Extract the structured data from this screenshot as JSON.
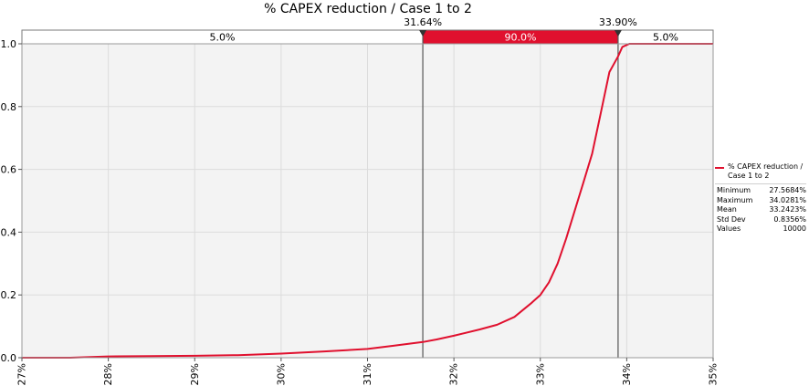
{
  "chart_data": {
    "type": "line",
    "title": "% CAPEX reduction / Case 1 to 2",
    "xlim": [
      27,
      35
    ],
    "ylim": [
      0,
      1.0
    ],
    "x_ticks": [
      "27%",
      "28%",
      "29%",
      "30%",
      "31%",
      "32%",
      "33%",
      "34%",
      "35%"
    ],
    "x_tick_values": [
      27,
      28,
      29,
      30,
      31,
      32,
      33,
      34,
      35
    ],
    "y_ticks": [
      "0.0",
      "0.2",
      "0.4",
      "0.6",
      "0.8",
      "1.0"
    ],
    "y_tick_values": [
      0,
      0.2,
      0.4,
      0.6,
      0.8,
      1.0
    ],
    "grid": true,
    "series": [
      {
        "name": "% CAPEX reduction / Case 1 to 2",
        "color": "#e0102e",
        "x": [
          27.0,
          27.56,
          27.8,
          28.0,
          28.5,
          29.0,
          29.5,
          30.0,
          30.5,
          31.0,
          31.3,
          31.64,
          31.8,
          32.0,
          32.3,
          32.5,
          32.7,
          32.9,
          33.0,
          33.1,
          33.2,
          33.3,
          33.4,
          33.5,
          33.6,
          33.7,
          33.8,
          33.9,
          33.95,
          34.03,
          35.0
        ],
        "y": [
          0.0,
          0.0,
          0.002,
          0.004,
          0.005,
          0.006,
          0.008,
          0.013,
          0.02,
          0.028,
          0.038,
          0.05,
          0.058,
          0.07,
          0.09,
          0.105,
          0.13,
          0.175,
          0.2,
          0.24,
          0.3,
          0.38,
          0.47,
          0.56,
          0.65,
          0.78,
          0.91,
          0.96,
          0.99,
          1.0,
          1.0
        ]
      }
    ],
    "delimiters": [
      {
        "label": "31.64%",
        "value": 31.64
      },
      {
        "label": "33.90%",
        "value": 33.9
      }
    ],
    "bands": [
      {
        "label": "5.0%",
        "from": 27,
        "to": 31.64,
        "highlight": false
      },
      {
        "label": "90.0%",
        "from": 31.64,
        "to": 33.9,
        "highlight": true
      },
      {
        "label": "5.0%",
        "from": 33.9,
        "to": 35,
        "highlight": false
      }
    ],
    "colors": {
      "accent": "#e0102e",
      "plot_bg": "#f3f3f3",
      "grid": "#dcdcdc"
    }
  },
  "legend": {
    "series_name": "% CAPEX reduction / Case 1 to 2",
    "stats": [
      {
        "label": "Minimum",
        "value": "27.5684%"
      },
      {
        "label": "Maximum",
        "value": "34.0281%"
      },
      {
        "label": "Mean",
        "value": "33.2423%"
      },
      {
        "label": "Std Dev",
        "value": "0.8356%"
      },
      {
        "label": "Values",
        "value": "10000"
      }
    ]
  }
}
